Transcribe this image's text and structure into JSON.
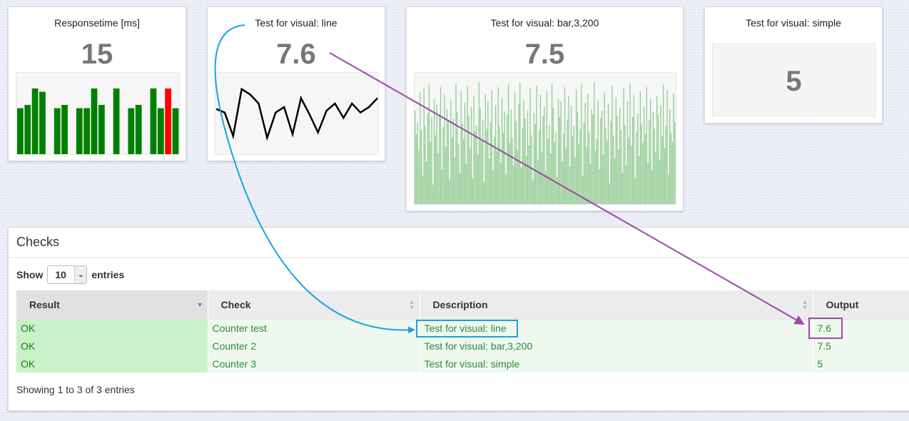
{
  "widgets": [
    {
      "title": "Responsetime [ms]",
      "value": "15",
      "chart_type": "bar-status"
    },
    {
      "title": "Test for visual: line",
      "value": "7.6",
      "chart_type": "line"
    },
    {
      "title": "Test for visual: bar,3,200",
      "value": "7.5",
      "chart_type": "bar"
    },
    {
      "title": "Test for visual: simple",
      "value": "5",
      "chart_type": "simple"
    }
  ],
  "colors": {
    "ok_bar": "#008000",
    "fail_bar": "#ff0000",
    "light_bar": "#8fcc8f",
    "line": "#000000",
    "blue_annotation": "#1aa3e0",
    "purple_annotation": "#9b4aa8",
    "ok_cell": "#c9f2c9",
    "ok_text": "#177a17"
  },
  "chart_data": [
    {
      "type": "bar",
      "values": [
        7,
        7.5,
        10,
        9.5,
        3,
        7,
        7.5,
        3,
        7,
        7,
        10,
        7.5,
        3,
        10,
        3,
        7,
        7.5,
        3,
        10,
        7,
        10,
        7
      ],
      "status": [
        "ok",
        "ok",
        "ok",
        "ok",
        "gap",
        "ok",
        "ok",
        "gap",
        "ok",
        "ok",
        "ok",
        "ok",
        "gap",
        "ok",
        "gap",
        "ok",
        "ok",
        "gap",
        "ok",
        "ok",
        "fail",
        "ok"
      ],
      "note_status_values": "gap = no bar drawn"
    },
    {
      "type": "line",
      "values": [
        7.5,
        7.3,
        6,
        8.6,
        8.3,
        7.8,
        5.9,
        7.3,
        7.6,
        6.1,
        8.1,
        7.2,
        6.2,
        7.4,
        7.8,
        7.0,
        7.8,
        7.3,
        7.6,
        8.1
      ]
    },
    {
      "type": "bar",
      "values": [
        7.2,
        5.4,
        6.3,
        4.1,
        8.6,
        5.7,
        2.2,
        8.9,
        6.0,
        3.3,
        7.0,
        9.2,
        4.8,
        6.7,
        1.5,
        8.1,
        5.3,
        7.7,
        3.9,
        6.9,
        9.0,
        2.7,
        5.9,
        8.4,
        4.4,
        7.3,
        6.4,
        1.9,
        8.0,
        5.1,
        6.6,
        3.6,
        9.3,
        7.1,
        4.6,
        2.4,
        8.7,
        6.2,
        5.0,
        7.8,
        3.1,
        9.1,
        6.8,
        4.3,
        7.5,
        2.0,
        8.3,
        5.6,
        6.1,
        3.8,
        9.4,
        7.4,
        4.9,
        6.5,
        1.7,
        8.5,
        5.8,
        7.9,
        3.5,
        6.3,
        8.8,
        2.6,
        5.2,
        7.6,
        4.1,
        9.0,
        6.0,
        3.2,
        8.2,
        5.5,
        7.1,
        2.3,
        6.9,
        9.2,
        4.7,
        7.3,
        5.1,
        3.0,
        8.6,
        6.4,
        4.2,
        7.7,
        9.4,
        2.8,
        5.9,
        8.0,
        6.6,
        3.7,
        7.2,
        4.5,
        8.9,
        5.3,
        1.8,
        7.0,
        6.2,
        9.1,
        3.4,
        5.7,
        8.4,
        4.0,
        6.8,
        7.5,
        2.5,
        8.7,
        5.0,
        6.1,
        3.9,
        9.3,
        7.4,
        4.8,
        5.6,
        2.1,
        8.1,
        6.7,
        7.9,
        3.3,
        5.4,
        9.0,
        4.3,
        6.5,
        8.3,
        2.9,
        7.6,
        5.2,
        6.0,
        3.6,
        8.8,
        7.1,
        4.6,
        5.8,
        9.2,
        2.2,
        6.3,
        7.8,
        4.4,
        8.5,
        5.5,
        3.1,
        7.3,
        6.9,
        9.4,
        4.1,
        5.0,
        8.0,
        2.7,
        6.6,
        7.2,
        3.8,
        8.6,
        5.9,
        4.9,
        7.7,
        1.6,
        6.4,
        9.1,
        5.3,
        3.5,
        8.2,
        6.8,
        4.2,
        7.4,
        5.7,
        2.4,
        8.9,
        6.1,
        3.0,
        7.9,
        5.1,
        9.3,
        4.5,
        6.7,
        8.4,
        2.0,
        5.6,
        7.0,
        3.7,
        8.7,
        6.2,
        4.7,
        7.5,
        5.4,
        9.0,
        3.2,
        6.5,
        8.1,
        2.6,
        7.1,
        5.8,
        4.0,
        8.3,
        6.9,
        3.4,
        7.6,
        5.2,
        9.2,
        4.3,
        6.0,
        8.8,
        2.3,
        7.3,
        5.5,
        4.8,
        8.5,
        6.3
      ],
      "ylim": [
        0,
        10
      ]
    }
  ],
  "checks": {
    "title": "Checks",
    "show_label": "Show",
    "page_size": "10",
    "entries_label": "entries",
    "columns": [
      "Result",
      "Check",
      "Description",
      "Output"
    ],
    "rows": [
      {
        "result": "OK",
        "check": "Counter test",
        "description": "Test for visual: line",
        "output": "7.6"
      },
      {
        "result": "OK",
        "check": "Counter 2",
        "description": "Test for visual: bar,3,200",
        "output": "7.5"
      },
      {
        "result": "OK",
        "check": "Counter 3",
        "description": "Test for visual: simple",
        "output": "5"
      }
    ],
    "footer": "Showing 1 to 3 of 3 entries"
  }
}
